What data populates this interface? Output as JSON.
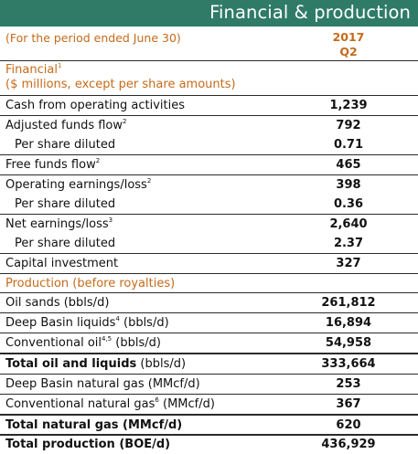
{
  "title": "Financial & production",
  "period_label": "(For the period ended June 30)",
  "column": {
    "year": "2017",
    "quarter": "Q2"
  },
  "financial_section": {
    "title": "Financial",
    "title_sup": "1",
    "subtitle": "($ millions, except per share amounts)"
  },
  "financial_rows": [
    {
      "label": "Cash from operating activities",
      "sup": "",
      "suffix": "",
      "value": "1,239"
    },
    {
      "label": "Adjusted funds flow",
      "sup": "2",
      "suffix": "",
      "value": "792"
    },
    {
      "label": "Per share diluted",
      "sup": "",
      "suffix": "",
      "value": "0.71"
    },
    {
      "label": "Free funds flow",
      "sup": "2",
      "suffix": "",
      "value": "465"
    },
    {
      "label": "Operating earnings/loss",
      "sup": "2",
      "suffix": "",
      "value": "398"
    },
    {
      "label": "Per share diluted",
      "sup": "",
      "suffix": "",
      "value": "0.36"
    },
    {
      "label": "Net earnings/loss",
      "sup": "3",
      "suffix": "",
      "value": "2,640"
    },
    {
      "label": "Per share diluted",
      "sup": "",
      "suffix": "",
      "value": "2.37"
    },
    {
      "label": "Capital investment",
      "sup": "",
      "suffix": "",
      "value": "327"
    }
  ],
  "production_section": {
    "title": "Production (before royalties)"
  },
  "production_rows": [
    {
      "label": "Oil sands (bbls/d)",
      "sup": "",
      "suffix": "",
      "value": "261,812"
    },
    {
      "label": "Deep Basin liquids",
      "sup": "4",
      "suffix": " (bbls/d)",
      "value": "16,894"
    },
    {
      "label": "Conventional oil",
      "sup": "4,5",
      "suffix": " (bbls/d)",
      "value": "54,958"
    },
    {
      "label": "Total oil and liquids",
      "sup": "",
      "suffix": " (bbls/d)",
      "value": "333,664"
    },
    {
      "label": "Deep Basin natural gas (MMcf/d)",
      "sup": "",
      "suffix": "",
      "value": "253"
    },
    {
      "label": "Conventional natural gas",
      "sup": "6",
      "suffix": " (MMcf/d)",
      "value": "367"
    },
    {
      "label": "Total natural gas (MMcf/d)",
      "sup": "",
      "suffix": "",
      "value": "620"
    },
    {
      "label": "Total production (BOE/d)",
      "sup": "",
      "suffix": "",
      "value": "436,929"
    }
  ],
  "colors": {
    "header_bg": "#2f7b67",
    "accent": "#c56a1a",
    "text": "#111111"
  }
}
